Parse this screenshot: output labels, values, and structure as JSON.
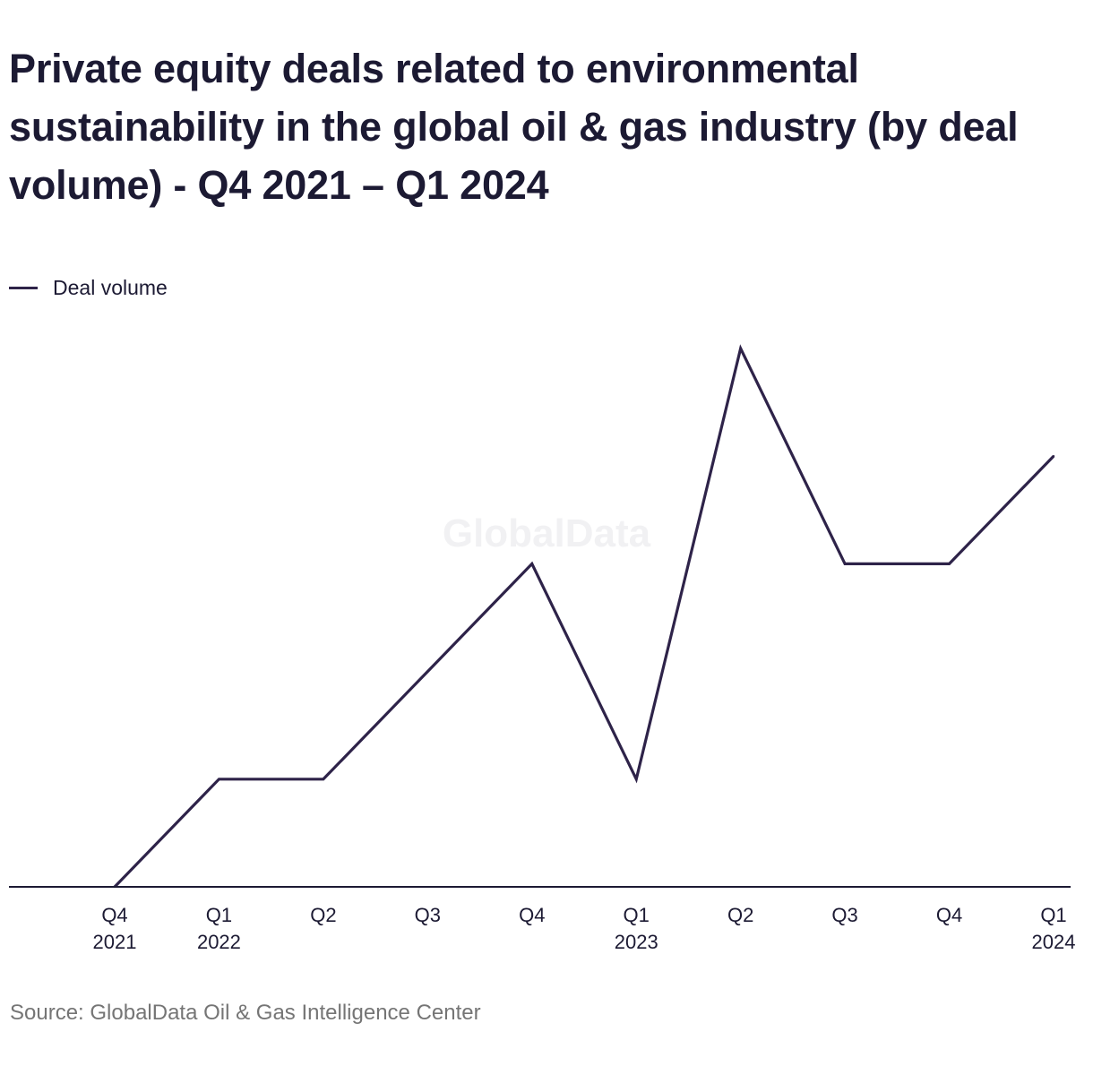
{
  "title": "Private equity deals related to environmental sustainability in the global oil & gas industry (by deal volume) - Q4 2021 – Q1 2024",
  "legend": {
    "label": "Deal volume"
  },
  "watermark": "GlobalData",
  "source": "Source: GlobalData Oil & Gas Intelligence Center",
  "colors": {
    "line": "#2e2349",
    "axis": "#1c1a33",
    "text": "#1c1a33",
    "source": "#757575",
    "watermark": "#f1f1f3"
  },
  "chart_data": {
    "type": "line",
    "title": "Private equity deals related to environmental sustainability in the global oil & gas industry (by deal volume) - Q4 2021 – Q1 2024",
    "xlabel": "",
    "ylabel": "",
    "categories": [
      [
        "Q4",
        "2021"
      ],
      [
        "Q1",
        "2022"
      ],
      [
        "Q2"
      ],
      [
        "Q3"
      ],
      [
        "Q4"
      ],
      [
        "Q1",
        "2023"
      ],
      [
        "Q2"
      ],
      [
        "Q3"
      ],
      [
        "Q4"
      ],
      [
        "Q1",
        "2024"
      ]
    ],
    "series": [
      {
        "name": "Deal volume",
        "values": [
          0,
          1,
          1,
          2,
          3,
          1,
          5,
          3,
          3,
          4
        ]
      }
    ],
    "ylim": [
      0,
      5
    ],
    "grid": false,
    "legend_position": "top-left"
  }
}
